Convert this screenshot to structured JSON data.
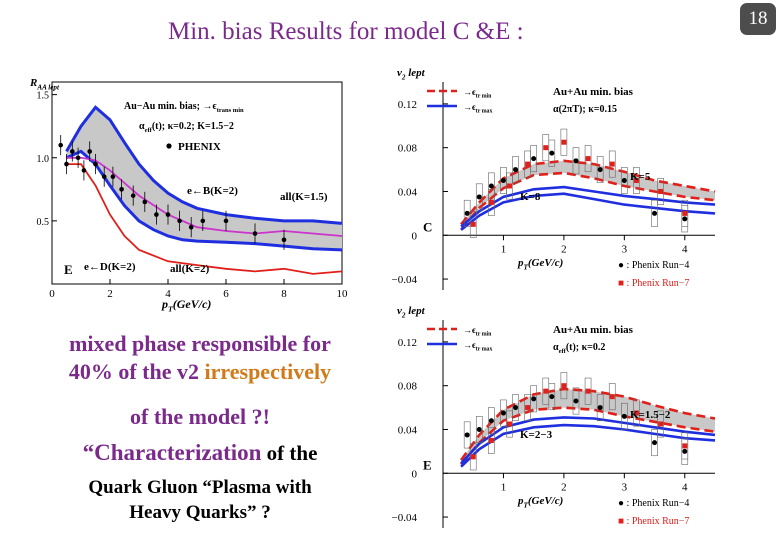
{
  "slide": {
    "title": "Min. bias Results for model C &E :",
    "number": "18"
  },
  "text": {
    "line1": "mixed phase responsible for",
    "line2_prefix": "40% of the v2 ",
    "line2_highlight": "irrespectively",
    "line3": "of the model ?!",
    "line4_quote_big": "“Characterization",
    "line4_rest": " of the",
    "line5": "Quark Gluon “Plasma with",
    "line6": "Heavy Quarks” ?"
  },
  "colors": {
    "title": "#7b2a8c",
    "highlight": "#d27a1a",
    "blue_curve": "#1f2fe0",
    "red_curve": "#e0201a",
    "magenta_curve": "#cc33cc",
    "band_fill": "#c8c8c8"
  },
  "chart_data": [
    {
      "type": "line",
      "id": "raa",
      "ylabel": "R",
      "ylabel_sub": "AA lept",
      "xlabel": "p",
      "xlabel_sub": "T",
      "xlabel_unit": "(GeV/c)",
      "xlim": [
        0,
        10
      ],
      "ylim": [
        0,
        1.6
      ],
      "x_ticks": [
        "0",
        "2",
        "4",
        "6",
        "8",
        "10"
      ],
      "y_ticks": [
        "0.5",
        "1.0",
        "1.5"
      ],
      "panel_label": "E",
      "legend": {
        "line1": "Au−Au min. bias; →ϵ",
        "line1_sub": "trans min",
        "line2": "α",
        "line2_sub": "eff",
        "line2_rest": "(t); κ=0.2; K=1.5−2",
        "marker_label": "PHENIX"
      },
      "annotations": [
        "e←B(K=2)",
        "all(K=1.5)",
        "e←D(K=2)",
        "all(K=2)"
      ],
      "series": [
        {
          "name": "all(K=1.5)",
          "color": "#1f2fe0",
          "x": [
            0.5,
            1,
            1.5,
            2,
            2.5,
            3,
            3.5,
            4,
            4.5,
            5,
            6,
            7,
            8,
            9,
            10
          ],
          "y": [
            1.05,
            1.25,
            1.4,
            1.3,
            1.12,
            0.95,
            0.82,
            0.72,
            0.65,
            0.6,
            0.55,
            0.52,
            0.5,
            0.5,
            0.48
          ]
        },
        {
          "name": "all(K=2)",
          "color": "#1f2fe0",
          "x": [
            0.5,
            1,
            1.5,
            2,
            2.5,
            3,
            3.5,
            4,
            4.5,
            5,
            6,
            7,
            8,
            9,
            10
          ],
          "y": [
            1.0,
            1.05,
            0.95,
            0.78,
            0.62,
            0.5,
            0.43,
            0.38,
            0.35,
            0.34,
            0.33,
            0.32,
            0.3,
            0.28,
            0.27
          ]
        },
        {
          "name": "e←B(K=2)",
          "color": "#cc33cc",
          "x": [
            0.5,
            1,
            1.5,
            2,
            2.5,
            3,
            4,
            5,
            6,
            7,
            8,
            9,
            10
          ],
          "y": [
            1.0,
            1.0,
            0.98,
            0.9,
            0.8,
            0.7,
            0.55,
            0.45,
            0.42,
            0.4,
            0.42,
            0.4,
            0.38
          ]
        },
        {
          "name": "e←D(K=2)",
          "color": "#e0201a",
          "x": [
            0.5,
            1,
            1.5,
            2,
            2.5,
            3,
            4,
            5,
            6,
            7,
            8,
            9,
            10
          ],
          "y": [
            0.95,
            0.95,
            0.78,
            0.55,
            0.38,
            0.27,
            0.18,
            0.15,
            0.12,
            0.1,
            0.12,
            0.08,
            0.1
          ]
        },
        {
          "name": "PHENIX",
          "color": "#000000",
          "marker": "dot",
          "x": [
            0.3,
            0.5,
            0.7,
            0.9,
            1.1,
            1.3,
            1.5,
            1.8,
            2.1,
            2.4,
            2.8,
            3.2,
            3.6,
            4.0,
            4.4,
            4.8,
            5.2,
            6.0,
            7.0,
            8.0
          ],
          "y": [
            1.1,
            0.95,
            1.05,
            1.0,
            0.9,
            1.05,
            0.95,
            0.85,
            0.85,
            0.75,
            0.7,
            0.65,
            0.55,
            0.55,
            0.5,
            0.45,
            0.5,
            0.5,
            0.4,
            0.35
          ]
        }
      ]
    },
    {
      "type": "line",
      "id": "v2-model-C",
      "ylabel": "v",
      "ylabel_sub": "2",
      "ylabel_rest": " lept",
      "xlabel": "p",
      "xlabel_sub": "T",
      "xlabel_unit": "(GeV/c)",
      "xlim": [
        0,
        4.5
      ],
      "ylim": [
        -0.05,
        0.14
      ],
      "x_ticks": [
        "1",
        "2",
        "3",
        "4"
      ],
      "y_ticks": [
        "0.12",
        "0.08",
        "0.04",
        "0",
        "−0.04"
      ],
      "panel_label": "C",
      "legend": {
        "red_label": "→ϵ",
        "red_sub": "tr min",
        "blue_label": "→ϵ",
        "blue_sub": "tr max",
        "header": "Au+Au min. bias",
        "param": "α(2πT); κ=0.15"
      },
      "annotations": [
        "K=5",
        "K=8"
      ],
      "marker_legend": [
        "● : Phenix Run−4",
        "■ : Phenix Run−7"
      ],
      "series": [
        {
          "name": "→ϵtr min",
          "color": "#e0201a",
          "dashed": true,
          "x": [
            0.3,
            0.6,
            1,
            1.5,
            2,
            2.5,
            3,
            3.5,
            4,
            4.5
          ],
          "y": [
            0.01,
            0.03,
            0.052,
            0.065,
            0.068,
            0.065,
            0.058,
            0.05,
            0.045,
            0.04
          ]
        },
        {
          "name": "→ϵtr min (lower)",
          "color": "#e0201a",
          "dashed": true,
          "x": [
            0.3,
            0.6,
            1,
            1.5,
            2,
            2.5,
            3,
            3.5,
            4,
            4.5
          ],
          "y": [
            0.005,
            0.025,
            0.043,
            0.055,
            0.057,
            0.052,
            0.045,
            0.04,
            0.035,
            0.032
          ]
        },
        {
          "name": "→ϵtr max",
          "color": "#1f2fe0",
          "x": [
            0.3,
            0.6,
            1,
            1.5,
            2,
            2.5,
            3,
            3.5,
            4,
            4.5
          ],
          "y": [
            0.005,
            0.018,
            0.03,
            0.036,
            0.038,
            0.033,
            0.028,
            0.025,
            0.022,
            0.02
          ]
        },
        {
          "name": "→ϵtr max (upper)",
          "color": "#1f2fe0",
          "x": [
            0.3,
            0.6,
            1,
            1.5,
            2,
            2.5,
            3,
            3.5,
            4,
            4.5
          ],
          "y": [
            0.008,
            0.022,
            0.035,
            0.042,
            0.044,
            0.04,
            0.036,
            0.033,
            0.03,
            0.028
          ]
        },
        {
          "name": "Phenix Run−4",
          "color": "#000000",
          "marker": "dot",
          "x": [
            0.4,
            0.6,
            0.8,
            1.0,
            1.2,
            1.5,
            1.8,
            2.2,
            2.6,
            3.0,
            3.5,
            4.0
          ],
          "y": [
            0.02,
            0.035,
            0.045,
            0.05,
            0.06,
            0.07,
            0.075,
            0.068,
            0.06,
            0.05,
            0.02,
            0.015
          ]
        },
        {
          "name": "Phenix Run−7",
          "color": "#e0201a",
          "marker": "square",
          "x": [
            0.5,
            0.8,
            1.1,
            1.4,
            1.7,
            2.0,
            2.4,
            2.8,
            3.2,
            3.6,
            4.0
          ],
          "y": [
            0.01,
            0.03,
            0.045,
            0.065,
            0.08,
            0.085,
            0.07,
            0.065,
            0.05,
            0.04,
            0.02
          ]
        }
      ]
    },
    {
      "type": "line",
      "id": "v2-model-E",
      "ylabel": "v",
      "ylabel_sub": "2",
      "ylabel_rest": " lept",
      "xlabel": "p",
      "xlabel_sub": "T",
      "xlabel_unit": "(GeV/c)",
      "xlim": [
        0,
        4.5
      ],
      "ylim": [
        -0.05,
        0.14
      ],
      "x_ticks": [
        "1",
        "2",
        "3",
        "4"
      ],
      "y_ticks": [
        "0.12",
        "0.08",
        "0.04",
        "0",
        "−0.04"
      ],
      "panel_label": "E",
      "legend": {
        "red_label": "→ϵ",
        "red_sub": "tr min",
        "blue_label": "→ϵ",
        "blue_sub": "tr max",
        "header": "Au+Au min. bias",
        "param": "α",
        "param_sub": "eff",
        "param_rest": "(t); κ=0.2"
      },
      "annotations": [
        "K=1.5−2",
        "K=2−3"
      ],
      "marker_legend": [
        "● : Phenix Run−4",
        "■ : Phenix Run−7"
      ],
      "series": [
        {
          "name": "→ϵtr min",
          "color": "#e0201a",
          "dashed": true,
          "x": [
            0.3,
            0.6,
            1,
            1.5,
            2,
            2.5,
            3,
            3.5,
            4,
            4.5
          ],
          "y": [
            0.012,
            0.035,
            0.058,
            0.072,
            0.077,
            0.075,
            0.07,
            0.062,
            0.055,
            0.05
          ]
        },
        {
          "name": "→ϵtr min (lower)",
          "color": "#e0201a",
          "dashed": true,
          "x": [
            0.3,
            0.6,
            1,
            1.5,
            2,
            2.5,
            3,
            3.5,
            4,
            4.5
          ],
          "y": [
            0.008,
            0.028,
            0.048,
            0.058,
            0.06,
            0.058,
            0.052,
            0.047,
            0.042,
            0.038
          ]
        },
        {
          "name": "→ϵtr max",
          "color": "#1f2fe0",
          "x": [
            0.3,
            0.6,
            1,
            1.5,
            2,
            2.5,
            3,
            3.5,
            4,
            4.5
          ],
          "y": [
            0.006,
            0.022,
            0.036,
            0.042,
            0.044,
            0.043,
            0.04,
            0.036,
            0.032,
            0.03
          ]
        },
        {
          "name": "→ϵtr max (upper)",
          "color": "#1f2fe0",
          "x": [
            0.3,
            0.6,
            1,
            1.5,
            2,
            2.5,
            3,
            3.5,
            4,
            4.5
          ],
          "y": [
            0.009,
            0.027,
            0.042,
            0.049,
            0.051,
            0.05,
            0.046,
            0.042,
            0.038,
            0.035
          ]
        },
        {
          "name": "Phenix Run−4",
          "color": "#000000",
          "marker": "dot",
          "x": [
            0.4,
            0.6,
            0.8,
            1.0,
            1.2,
            1.5,
            1.8,
            2.2,
            2.6,
            3.0,
            3.5,
            4.0
          ],
          "y": [
            0.035,
            0.04,
            0.048,
            0.055,
            0.06,
            0.068,
            0.07,
            0.066,
            0.06,
            0.052,
            0.028,
            0.02
          ]
        },
        {
          "name": "Phenix Run−7",
          "color": "#e0201a",
          "marker": "square",
          "x": [
            0.5,
            0.8,
            1.1,
            1.4,
            1.7,
            2.0,
            2.4,
            2.8,
            3.2,
            3.6,
            4.0
          ],
          "y": [
            0.015,
            0.03,
            0.045,
            0.06,
            0.075,
            0.08,
            0.075,
            0.07,
            0.055,
            0.045,
            0.025
          ]
        }
      ]
    }
  ]
}
